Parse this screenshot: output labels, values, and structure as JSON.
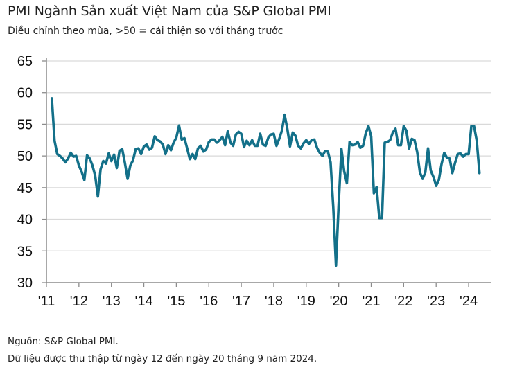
{
  "header": {
    "title": "PMI Ngành Sản xuất Việt Nam của S&P Global PMI",
    "subtitle": "Điều chỉnh theo mùa, >50 = cải thiện so với tháng trước"
  },
  "footer": {
    "source": "Nguồn: S&P Global PMI.",
    "note": "Dữ liệu được thu thập từ ngày 12 đến ngày 20 tháng 9 năm 2024."
  },
  "colors": {
    "line": "#137089",
    "grid": "#d9d9d9",
    "axis": "#8c8c8c"
  },
  "chart_data": {
    "type": "line",
    "title": "PMI Ngành Sản xuất Việt Nam của S&P Global PMI",
    "subtitle": "Điều chỉnh theo mùa, >50 = cải thiện so với tháng trước",
    "xlabel": "",
    "ylabel": "",
    "ylim": [
      30,
      65
    ],
    "yticks": [
      30,
      35,
      40,
      45,
      50,
      55,
      60,
      65
    ],
    "ytick_labels": [
      "30",
      "35",
      "40",
      "45",
      "50",
      "55",
      "60",
      "65"
    ],
    "xlim_years": [
      2011,
      2024.75
    ],
    "xticks": [
      2011,
      2012,
      2013,
      2014,
      2015,
      2016,
      2017,
      2018,
      2019,
      2020,
      2021,
      2022,
      2023,
      2024
    ],
    "xtick_labels": [
      "'11",
      "'12",
      "'13",
      "'14",
      "'15",
      "'16",
      "'17",
      "'18",
      "'19",
      "'20",
      "'21",
      "'22",
      "'23",
      "'24"
    ],
    "grid": true,
    "legend": "none",
    "start": "2011-03",
    "frequency": "monthly",
    "series": [
      {
        "name": "PMI",
        "values": [
          59.1,
          52.4,
          50.3,
          50.0,
          49.6,
          49.0,
          49.6,
          50.5,
          49.9,
          50.0,
          48.5,
          47.5,
          46.2,
          50.1,
          49.6,
          48.5,
          46.9,
          43.6,
          47.9,
          49.2,
          48.8,
          50.4,
          49.2,
          50.2,
          48.1,
          50.8,
          51.1,
          48.9,
          46.4,
          48.5,
          49.3,
          51.1,
          51.2,
          50.3,
          51.5,
          51.8,
          51.0,
          51.3,
          53.1,
          52.5,
          52.3,
          51.8,
          50.3,
          51.7,
          50.9,
          52.1,
          52.9,
          54.8,
          52.6,
          52.8,
          51.2,
          49.5,
          50.3,
          49.5,
          51.2,
          51.6,
          50.7,
          51.0,
          52.2,
          52.6,
          52.6,
          52.1,
          52.5,
          53.0,
          51.7,
          53.9,
          52.1,
          51.6,
          53.4,
          53.8,
          53.5,
          51.4,
          52.4,
          51.7,
          52.5,
          51.6,
          51.6,
          53.5,
          51.8,
          51.6,
          52.9,
          53.4,
          53.5,
          51.6,
          52.7,
          54.0,
          56.5,
          54.3,
          51.5,
          53.7,
          53.2,
          51.6,
          51.2,
          52.0,
          52.5,
          51.9,
          52.5,
          52.6,
          51.3,
          50.5,
          50.0,
          50.8,
          50.7,
          49.0,
          41.9,
          32.7,
          42.7,
          51.1,
          47.6,
          45.7,
          52.2,
          51.7,
          51.8,
          52.2,
          51.3,
          51.6,
          53.6,
          54.7,
          53.1,
          44.1,
          45.1,
          40.2,
          40.2,
          52.1,
          52.2,
          52.5,
          53.7,
          54.3,
          51.7,
          51.7,
          54.7,
          54.0,
          51.2,
          52.7,
          52.5,
          50.6,
          47.4,
          46.4,
          47.4,
          51.2,
          47.7,
          46.7,
          45.3,
          46.2,
          48.7,
          50.5,
          49.7,
          49.6,
          47.3,
          48.9,
          50.3,
          50.4,
          49.9,
          50.3,
          50.3,
          54.7,
          54.7,
          52.4,
          47.3
        ]
      }
    ]
  }
}
